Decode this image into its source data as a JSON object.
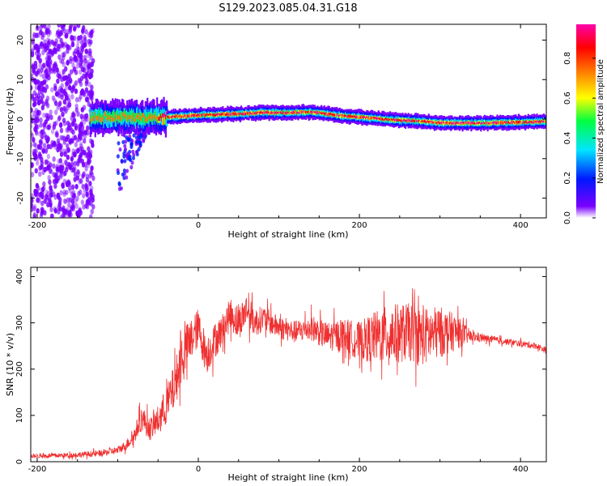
{
  "figure": {
    "title": "S129.2023.085.04.31.G18"
  },
  "chart_data": [
    {
      "type": "heatmap",
      "xlabel": "Height of straight line (km)",
      "ylabel": "Frequency (Hz)",
      "xlim": [
        -208,
        432
      ],
      "ylim": [
        -25,
        24
      ],
      "xticks": [
        -200,
        0,
        200,
        400
      ],
      "yticks": [
        -20,
        -10,
        0,
        10,
        20
      ],
      "colorbar": {
        "label": "Normalized spectral amplitude",
        "range": [
          0,
          1
        ],
        "ticks": [
          "0.0",
          "0.2",
          "0.4",
          "0.6",
          "0.8"
        ],
        "colormap": [
          "#ffffff",
          "#7a00ff",
          "#0018ff",
          "#00e5ff",
          "#00ff40",
          "#ffff00",
          "#ff8000",
          "#ff0000",
          "#ff00aa"
        ]
      },
      "ridge": {
        "x": [
          -130,
          -100,
          -60,
          -40,
          0,
          50,
          80,
          100,
          140,
          180,
          200,
          240,
          280,
          300,
          350,
          400,
          432
        ],
        "frequency": [
          0.5,
          0.5,
          0.3,
          0.5,
          1.0,
          1.3,
          1.7,
          1.6,
          1.8,
          0.8,
          0.5,
          -0.2,
          -0.6,
          -1.0,
          -1.0,
          -0.8,
          -0.6
        ]
      },
      "noise_region": {
        "x": [
          -208,
          -130
        ],
        "frequency": [
          -25,
          24
        ]
      },
      "tail": {
        "x": [
          -100,
          -60
        ],
        "frequency": [
          -18,
          0
        ]
      },
      "grid": false
    },
    {
      "type": "line",
      "xlabel": "Height of straight line (km)",
      "ylabel": "SNR (10 * v/v)",
      "xlim": [
        -208,
        432
      ],
      "ylim": [
        0,
        420
      ],
      "xticks": [
        -200,
        0,
        200,
        400
      ],
      "yticks": [
        0,
        100,
        200,
        300,
        400
      ],
      "color": "#ef3030",
      "grid": false,
      "series": [
        {
          "x": [
            -208,
            -160,
            -120,
            -100,
            -90,
            -80,
            -70,
            -60,
            -50,
            -40,
            -30,
            -20,
            -10,
            0,
            10,
            20,
            30,
            40,
            50,
            60,
            70,
            80,
            100,
            120,
            140,
            160,
            180,
            200,
            220,
            240,
            260,
            280,
            300,
            320,
            340,
            360,
            380,
            400,
            420,
            432
          ],
          "values": [
            12,
            14,
            18,
            25,
            35,
            55,
            95,
            70,
            90,
            120,
            160,
            230,
            260,
            290,
            230,
            260,
            285,
            320,
            300,
            330,
            300,
            310,
            290,
            280,
            290,
            270,
            275,
            260,
            270,
            275,
            280,
            270,
            280,
            280,
            270,
            265,
            260,
            255,
            250,
            240
          ],
          "spread": [
            6,
            8,
            10,
            12,
            15,
            25,
            40,
            35,
            45,
            60,
            70,
            80,
            70,
            60,
            60,
            55,
            50,
            50,
            55,
            50,
            45,
            40,
            35,
            35,
            40,
            45,
            50,
            60,
            80,
            95,
            90,
            90,
            80,
            55,
            15,
            12,
            10,
            10,
            10,
            10
          ]
        }
      ]
    }
  ]
}
